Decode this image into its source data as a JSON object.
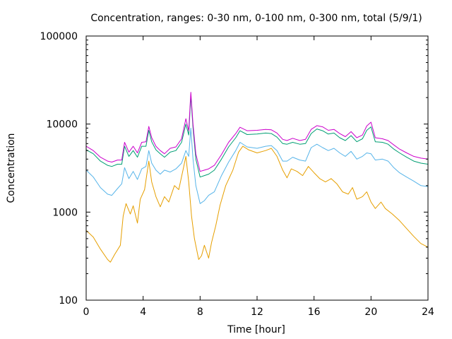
{
  "chart_data": {
    "type": "line",
    "title": "Concentration, ranges: 0-30 nm, 0-100 nm, 0-300 nm, total (5/9/1)",
    "xlabel": "Time [hour]",
    "ylabel": "Concentration",
    "x_scale": "linear",
    "y_scale": "log",
    "xlim": [
      0,
      24
    ],
    "ylim": [
      100,
      100000
    ],
    "x_ticks": [
      0,
      4,
      8,
      12,
      16,
      20,
      24
    ],
    "x_tick_labels": [
      "0",
      "4",
      "8",
      "12",
      "16",
      "20",
      "24"
    ],
    "y_ticks": [
      100,
      1000,
      10000,
      100000
    ],
    "y_tick_labels": [
      "100",
      "1000",
      "10000",
      "100000"
    ],
    "grid": false,
    "legend": "none",
    "series": [
      {
        "color": "#e69f00",
        "points": [
          [
            0,
            620
          ],
          [
            0.5,
            520
          ],
          [
            1.0,
            380
          ],
          [
            1.5,
            290
          ],
          [
            1.7,
            270
          ],
          [
            2.0,
            330
          ],
          [
            2.4,
            420
          ],
          [
            2.6,
            900
          ],
          [
            2.8,
            1250
          ],
          [
            3.1,
            950
          ],
          [
            3.3,
            1180
          ],
          [
            3.6,
            750
          ],
          [
            3.8,
            1400
          ],
          [
            4.1,
            1800
          ],
          [
            4.4,
            3800
          ],
          [
            4.6,
            2200
          ],
          [
            4.9,
            1500
          ],
          [
            5.2,
            1150
          ],
          [
            5.5,
            1500
          ],
          [
            5.8,
            1300
          ],
          [
            6.2,
            2000
          ],
          [
            6.5,
            1800
          ],
          [
            6.8,
            3000
          ],
          [
            7.0,
            4300
          ],
          [
            7.2,
            2200
          ],
          [
            7.4,
            900
          ],
          [
            7.6,
            500
          ],
          [
            7.9,
            290
          ],
          [
            8.1,
            320
          ],
          [
            8.3,
            420
          ],
          [
            8.6,
            300
          ],
          [
            8.8,
            450
          ],
          [
            9.1,
            700
          ],
          [
            9.4,
            1200
          ],
          [
            9.8,
            2000
          ],
          [
            10.3,
            3000
          ],
          [
            10.7,
            4800
          ],
          [
            11.0,
            5600
          ],
          [
            11.4,
            5100
          ],
          [
            12.0,
            4700
          ],
          [
            12.6,
            5000
          ],
          [
            13.0,
            5300
          ],
          [
            13.4,
            4300
          ],
          [
            13.8,
            3000
          ],
          [
            14.1,
            2450
          ],
          [
            14.4,
            3100
          ],
          [
            14.8,
            2900
          ],
          [
            15.2,
            2600
          ],
          [
            15.6,
            3300
          ],
          [
            16.0,
            2800
          ],
          [
            16.4,
            2400
          ],
          [
            16.8,
            2200
          ],
          [
            17.2,
            2400
          ],
          [
            17.6,
            2100
          ],
          [
            18.0,
            1700
          ],
          [
            18.4,
            1600
          ],
          [
            18.7,
            1900
          ],
          [
            19.0,
            1400
          ],
          [
            19.4,
            1500
          ],
          [
            19.7,
            1700
          ],
          [
            20.0,
            1300
          ],
          [
            20.3,
            1100
          ],
          [
            20.7,
            1300
          ],
          [
            21.0,
            1100
          ],
          [
            21.5,
            950
          ],
          [
            22.0,
            800
          ],
          [
            22.5,
            650
          ],
          [
            23.0,
            530
          ],
          [
            23.5,
            440
          ],
          [
            24.0,
            400
          ]
        ]
      },
      {
        "color": "#56b4e9",
        "points": [
          [
            0,
            3000
          ],
          [
            0.5,
            2500
          ],
          [
            1.0,
            1900
          ],
          [
            1.5,
            1600
          ],
          [
            1.8,
            1550
          ],
          [
            2.2,
            1850
          ],
          [
            2.5,
            2100
          ],
          [
            2.7,
            3200
          ],
          [
            3.0,
            2400
          ],
          [
            3.3,
            2900
          ],
          [
            3.6,
            2350
          ],
          [
            3.9,
            3100
          ],
          [
            4.2,
            3300
          ],
          [
            4.4,
            5000
          ],
          [
            4.6,
            3600
          ],
          [
            4.9,
            3000
          ],
          [
            5.2,
            2700
          ],
          [
            5.5,
            3000
          ],
          [
            5.9,
            2850
          ],
          [
            6.3,
            3100
          ],
          [
            6.7,
            3600
          ],
          [
            7.0,
            5000
          ],
          [
            7.2,
            4300
          ],
          [
            7.35,
            9000
          ],
          [
            7.5,
            4000
          ],
          [
            7.7,
            2000
          ],
          [
            8.0,
            1250
          ],
          [
            8.3,
            1350
          ],
          [
            8.6,
            1550
          ],
          [
            9.0,
            1700
          ],
          [
            9.5,
            2600
          ],
          [
            10.0,
            3700
          ],
          [
            10.5,
            5000
          ],
          [
            10.8,
            6200
          ],
          [
            11.3,
            5500
          ],
          [
            12.0,
            5300
          ],
          [
            12.6,
            5600
          ],
          [
            13.0,
            5700
          ],
          [
            13.4,
            5000
          ],
          [
            13.8,
            3800
          ],
          [
            14.1,
            3800
          ],
          [
            14.5,
            4200
          ],
          [
            15.0,
            3900
          ],
          [
            15.4,
            3800
          ],
          [
            15.8,
            5400
          ],
          [
            16.2,
            5900
          ],
          [
            16.6,
            5400
          ],
          [
            17.0,
            5000
          ],
          [
            17.4,
            5300
          ],
          [
            17.8,
            4700
          ],
          [
            18.2,
            4300
          ],
          [
            18.6,
            4900
          ],
          [
            19.0,
            4000
          ],
          [
            19.4,
            4300
          ],
          [
            19.7,
            4700
          ],
          [
            20.0,
            4600
          ],
          [
            20.3,
            3900
          ],
          [
            20.8,
            4000
          ],
          [
            21.2,
            3800
          ],
          [
            21.6,
            3200
          ],
          [
            22.0,
            2800
          ],
          [
            22.5,
            2500
          ],
          [
            23.0,
            2250
          ],
          [
            23.5,
            2000
          ],
          [
            24.0,
            1950
          ]
        ]
      },
      {
        "color": "#009e73",
        "points": [
          [
            0,
            5100
          ],
          [
            0.5,
            4600
          ],
          [
            1.0,
            3800
          ],
          [
            1.5,
            3400
          ],
          [
            1.8,
            3300
          ],
          [
            2.2,
            3500
          ],
          [
            2.5,
            3500
          ],
          [
            2.7,
            5600
          ],
          [
            3.0,
            4300
          ],
          [
            3.3,
            5000
          ],
          [
            3.6,
            4200
          ],
          [
            3.9,
            5600
          ],
          [
            4.2,
            5600
          ],
          [
            4.4,
            8500
          ],
          [
            4.6,
            6300
          ],
          [
            4.9,
            5100
          ],
          [
            5.2,
            4600
          ],
          [
            5.5,
            4200
          ],
          [
            5.9,
            4800
          ],
          [
            6.3,
            5000
          ],
          [
            6.7,
            6200
          ],
          [
            7.0,
            10000
          ],
          [
            7.2,
            7500
          ],
          [
            7.35,
            21000
          ],
          [
            7.5,
            9000
          ],
          [
            7.7,
            4000
          ],
          [
            8.0,
            2500
          ],
          [
            8.3,
            2600
          ],
          [
            8.6,
            2700
          ],
          [
            9.0,
            3000
          ],
          [
            9.5,
            4000
          ],
          [
            10.0,
            5500
          ],
          [
            10.5,
            7000
          ],
          [
            10.8,
            8400
          ],
          [
            11.3,
            7600
          ],
          [
            12.0,
            7700
          ],
          [
            12.6,
            7900
          ],
          [
            13.0,
            7800
          ],
          [
            13.4,
            7100
          ],
          [
            13.8,
            6000
          ],
          [
            14.1,
            5900
          ],
          [
            14.5,
            6200
          ],
          [
            15.0,
            5900
          ],
          [
            15.4,
            6000
          ],
          [
            15.8,
            7800
          ],
          [
            16.2,
            8800
          ],
          [
            16.6,
            8400
          ],
          [
            17.0,
            7700
          ],
          [
            17.4,
            7900
          ],
          [
            17.8,
            7000
          ],
          [
            18.2,
            6500
          ],
          [
            18.6,
            7400
          ],
          [
            19.0,
            6300
          ],
          [
            19.4,
            6800
          ],
          [
            19.7,
            8500
          ],
          [
            20.0,
            9300
          ],
          [
            20.3,
            6300
          ],
          [
            20.8,
            6200
          ],
          [
            21.2,
            5900
          ],
          [
            21.6,
            5200
          ],
          [
            22.0,
            4700
          ],
          [
            22.5,
            4200
          ],
          [
            23.0,
            3800
          ],
          [
            23.5,
            3600
          ],
          [
            24.0,
            3500
          ]
        ]
      },
      {
        "color": "#cc00cc",
        "points": [
          [
            0,
            5600
          ],
          [
            0.5,
            5000
          ],
          [
            1.0,
            4200
          ],
          [
            1.5,
            3800
          ],
          [
            1.8,
            3700
          ],
          [
            2.2,
            3900
          ],
          [
            2.5,
            3900
          ],
          [
            2.7,
            6200
          ],
          [
            3.0,
            4800
          ],
          [
            3.3,
            5600
          ],
          [
            3.6,
            4700
          ],
          [
            3.9,
            6200
          ],
          [
            4.2,
            6300
          ],
          [
            4.4,
            9400
          ],
          [
            4.6,
            7000
          ],
          [
            4.9,
            5600
          ],
          [
            5.2,
            5000
          ],
          [
            5.5,
            4600
          ],
          [
            5.9,
            5300
          ],
          [
            6.3,
            5500
          ],
          [
            6.7,
            6800
          ],
          [
            7.0,
            11500
          ],
          [
            7.2,
            8400
          ],
          [
            7.35,
            23000
          ],
          [
            7.5,
            10000
          ],
          [
            7.7,
            4600
          ],
          [
            8.0,
            2900
          ],
          [
            8.3,
            3000
          ],
          [
            8.6,
            3100
          ],
          [
            9.0,
            3400
          ],
          [
            9.5,
            4500
          ],
          [
            10.0,
            6200
          ],
          [
            10.5,
            7800
          ],
          [
            10.8,
            9200
          ],
          [
            11.3,
            8400
          ],
          [
            12.0,
            8500
          ],
          [
            12.6,
            8700
          ],
          [
            13.0,
            8600
          ],
          [
            13.4,
            7900
          ],
          [
            13.8,
            6700
          ],
          [
            14.1,
            6500
          ],
          [
            14.5,
            6900
          ],
          [
            15.0,
            6500
          ],
          [
            15.4,
            6700
          ],
          [
            15.8,
            8700
          ],
          [
            16.2,
            9600
          ],
          [
            16.6,
            9300
          ],
          [
            17.0,
            8500
          ],
          [
            17.4,
            8700
          ],
          [
            17.8,
            7800
          ],
          [
            18.2,
            7200
          ],
          [
            18.6,
            8200
          ],
          [
            19.0,
            7000
          ],
          [
            19.4,
            7500
          ],
          [
            19.7,
            9500
          ],
          [
            20.0,
            10500
          ],
          [
            20.3,
            7000
          ],
          [
            20.8,
            6800
          ],
          [
            21.2,
            6500
          ],
          [
            21.6,
            5800
          ],
          [
            22.0,
            5200
          ],
          [
            22.5,
            4700
          ],
          [
            23.0,
            4300
          ],
          [
            23.5,
            4100
          ],
          [
            24.0,
            4000
          ]
        ]
      }
    ]
  }
}
